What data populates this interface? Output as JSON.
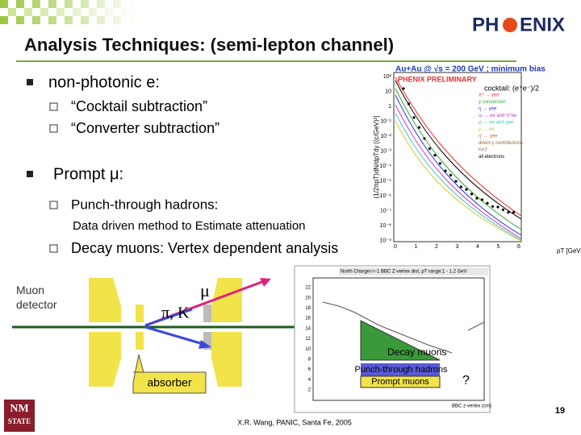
{
  "header": {
    "title": "Analysis Techniques: (semi-lepton channel)",
    "logo_left": "PH",
    "logo_right": "ENIX"
  },
  "bullets": [
    {
      "text": "non-photonic e:",
      "items": [
        "“Cocktail subtraction”",
        "“Converter subtraction”"
      ]
    },
    {
      "text": "Prompt μ:",
      "items": [
        "Punch-through hadrons:",
        "Decay muons: Vertex dependent analysis"
      ],
      "note": "Data driven method to Estimate  attenuation"
    }
  ],
  "spectrum": {
    "title": "Au+Au @ √s = 200 GeV ; minimum bias",
    "preliminary": "PHENIX PRELIMINARY",
    "cocktail": "cocktail: (e⁺e⁻)/2",
    "legend": [
      "π⁰ → γee",
      "γ conversion",
      "η → γee",
      "ω → ee and π⁰ee",
      "φ → ee and ηee",
      "ρ → ee",
      "η' → γee",
      "direct γ contributions",
      "Ke3",
      "all electrons"
    ],
    "y_label": "(1/2πpT)dN/dpTdy [(c/GeV)²]",
    "y_ticks": [
      "10²",
      "10",
      "1",
      "10⁻¹",
      "10⁻²",
      "10⁻³",
      "10⁻⁴",
      "10⁻⁵",
      "10⁻⁶",
      "10⁻⁷",
      "10⁻⁸",
      "10⁻⁹"
    ],
    "x_ticks": [
      "0",
      "1",
      "2",
      "3",
      "4",
      "5",
      "6"
    ],
    "x_label": "pT [GeV/c]"
  },
  "diagram": {
    "muon_detector": "Muon detector",
    "hadron_label": "π, K",
    "muon_label": "μ",
    "absorber": "absorber"
  },
  "vertex_plot": {
    "title": "North Charge==-1 BBC Z-vertex dist, pT range:1 - 1.2 GeV",
    "y_ticks": [
      "22",
      "20",
      "18",
      "16",
      "14",
      "12",
      "10",
      "8",
      "6",
      "4",
      "2"
    ],
    "x_label": "BBC z-vertex (cm)",
    "decay": "Decay muons",
    "punch": "Punch-through hadrons",
    "prompt": "Prompt muons",
    "question": "?"
  },
  "footer": {
    "credit": "X.R. Wang, PANIC, Santa Fe, 2005",
    "page": "19",
    "logo_top": "NM",
    "logo_bottom": "STATE"
  }
}
